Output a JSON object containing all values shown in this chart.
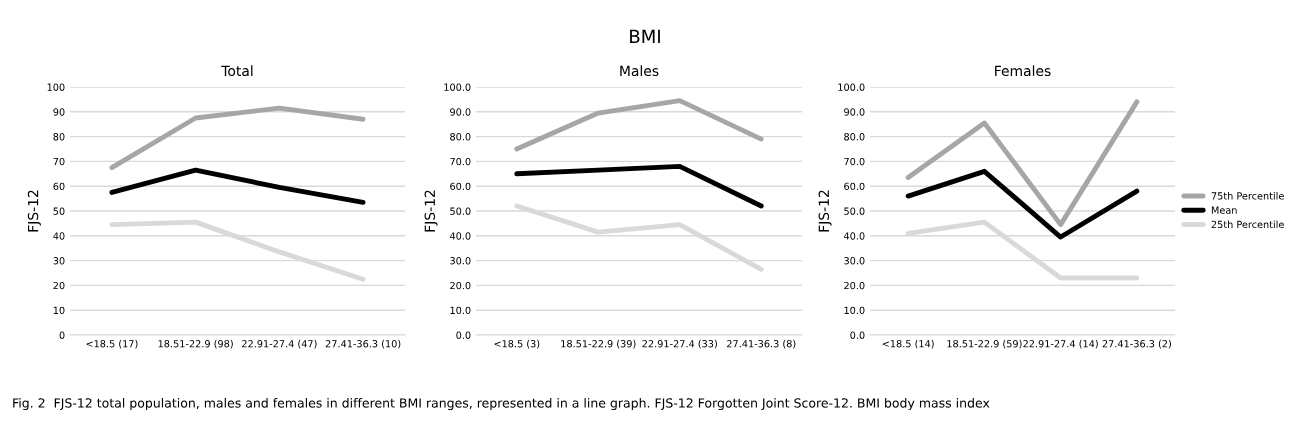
{
  "chart_data": [
    {
      "type": "line",
      "title": "Total",
      "ylabel": "FJS-12",
      "annotations": [
        "BMI",
        "Fig. 2  FJS-12 total population, males and females in different BMI ranges, represented in a line graph. FJS-12 Forgotten Joint Score-12. BMI body mass index"
      ],
      "categories": [
        "<18.5 (17)",
        "18.51-22.9 (98)",
        "22.91-27.4 (47)",
        "27.41-36.3 (10)"
      ],
      "series": [
        {
          "color": "#a6a6a6",
          "values": [
            67.5,
            87.5,
            91.5,
            87
          ]
        },
        {
          "color": "#000000",
          "values": [
            57.5,
            66.5,
            59.5,
            53.5
          ]
        },
        {
          "color": "#d9d9d9",
          "values": [
            44.5,
            45.5,
            33.5,
            22.5
          ]
        }
      ],
      "ylim": [
        0,
        100
      ],
      "yticks": [
        0,
        10,
        20,
        30,
        40,
        50,
        60,
        70,
        80,
        90,
        100
      ],
      "grid": "y",
      "marker": "none",
      "line_style": "solid"
    },
    {
      "type": "line",
      "title": "Males",
      "ylabel": "FJS-12",
      "categories": [
        "<18.5 (3)",
        "18.51-22.9 (39)",
        "22.91-27.4 (33)",
        "27.41-36.3 (8)"
      ],
      "series": [
        {
          "color": "#a6a6a6",
          "values": [
            75,
            89.5,
            94.5,
            79
          ]
        },
        {
          "color": "#000000",
          "values": [
            65,
            66.5,
            68,
            52
          ]
        },
        {
          "color": "#d9d9d9",
          "values": [
            52,
            41.5,
            44.5,
            26.5
          ]
        }
      ],
      "ylim": [
        0,
        100
      ],
      "yticks": [
        {
          "value": 0,
          "label": "0.0"
        },
        {
          "value": 10,
          "label": "10.0"
        },
        {
          "value": 20,
          "label": "20.0"
        },
        {
          "value": 30,
          "label": "30.0"
        },
        {
          "value": 40,
          "label": "40.0"
        },
        {
          "value": 50,
          "label": "50.0"
        },
        {
          "value": 60,
          "label": "60.0"
        },
        {
          "value": 70,
          "label": "70.0"
        },
        {
          "value": 80,
          "label": "80.0"
        },
        {
          "value": 90,
          "label": "90.0"
        },
        {
          "value": 100,
          "label": "100.0"
        }
      ],
      "grid": "y",
      "marker": "none",
      "line_style": "solid"
    },
    {
      "type": "line",
      "title": "Females",
      "ylabel": "FJS-12",
      "categories": [
        "<18.5 (14)",
        "18.51-22.9 (59)",
        "22.91-27.4 (14)",
        "27.41-36.3 (2)"
      ],
      "series": [
        {
          "name": "75th Percentile",
          "color": "#a6a6a6",
          "values": [
            63.5,
            85.5,
            44.5,
            94
          ]
        },
        {
          "name": "Mean",
          "color": "#000000",
          "values": [
            56,
            66,
            39.5,
            58
          ]
        },
        {
          "name": "25th Percentile",
          "color": "#d9d9d9",
          "values": [
            41,
            45.5,
            23,
            23
          ]
        }
      ],
      "ylim": [
        0,
        100
      ],
      "yticks": [
        {
          "value": 0,
          "label": "0.0"
        },
        {
          "value": 10,
          "label": "10.0"
        },
        {
          "value": 20,
          "label": "20.0"
        },
        {
          "value": 30,
          "label": "30.0"
        },
        {
          "value": 40,
          "label": "40.0"
        },
        {
          "value": 50,
          "label": "50.0"
        },
        {
          "value": 60,
          "label": "60.0"
        },
        {
          "value": 70,
          "label": "70.0"
        },
        {
          "value": 80,
          "label": "80.0"
        },
        {
          "value": 90,
          "label": "90.0"
        },
        {
          "value": 100,
          "label": "100.0"
        }
      ],
      "grid": "y",
      "legend": "right",
      "marker": "none",
      "line_style": "solid"
    }
  ]
}
